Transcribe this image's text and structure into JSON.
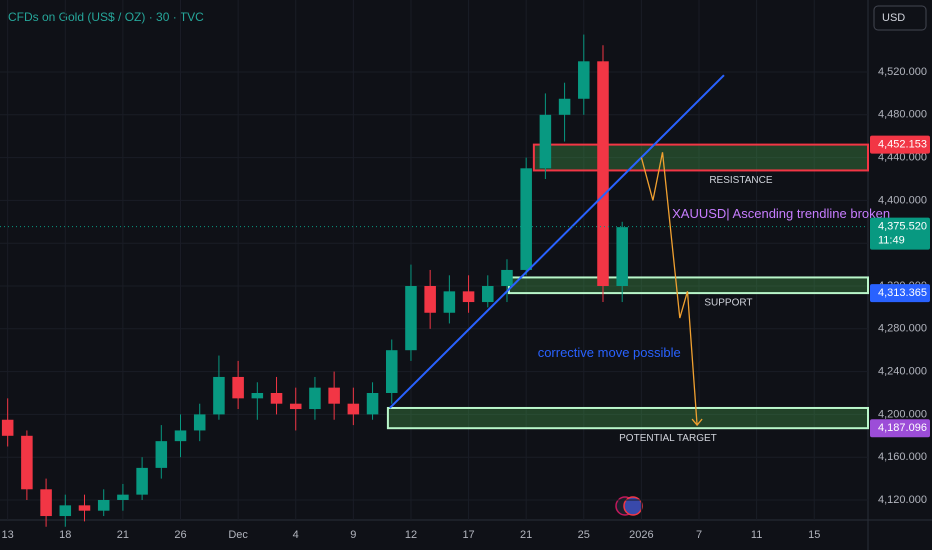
{
  "chart_data": {
    "type": "candlestick",
    "title": "CFDs on Gold (US$ / OZ) · 30 · TVC",
    "currency": "USD",
    "x": [
      0,
      1,
      2,
      3,
      4,
      5,
      6,
      7,
      8,
      9,
      10,
      11,
      12,
      13,
      14,
      15,
      16,
      17,
      18,
      19,
      20,
      21,
      22,
      23,
      24,
      25,
      26,
      27,
      28,
      29,
      30,
      31,
      32
    ],
    "open": [
      4195,
      4180,
      4130,
      4105,
      4115,
      4110,
      4120,
      4125,
      4150,
      4175,
      4185,
      4200,
      4235,
      4215,
      4220,
      4210,
      4205,
      4225,
      4210,
      4200,
      4220,
      4260,
      4320,
      4295,
      4315,
      4305,
      4320,
      4335,
      4430,
      4480,
      4495,
      4530,
      4320
    ],
    "high": [
      4215,
      4185,
      4140,
      4125,
      4125,
      4130,
      4135,
      4160,
      4190,
      4200,
      4210,
      4255,
      4250,
      4230,
      4235,
      4225,
      4235,
      4240,
      4225,
      4230,
      4270,
      4340,
      4335,
      4330,
      4330,
      4330,
      4345,
      4440,
      4500,
      4510,
      4555,
      4545,
      4380
    ],
    "low": [
      4170,
      4120,
      4095,
      4095,
      4100,
      4105,
      4110,
      4120,
      4140,
      4160,
      4175,
      4195,
      4205,
      4195,
      4200,
      4185,
      4195,
      4195,
      4190,
      4195,
      4210,
      4250,
      4280,
      4285,
      4295,
      4300,
      4305,
      4330,
      4420,
      4455,
      4480,
      4305,
      4305
    ],
    "close": [
      4180,
      4130,
      4105,
      4115,
      4110,
      4120,
      4125,
      4150,
      4175,
      4185,
      4200,
      4235,
      4215,
      4220,
      4210,
      4205,
      4225,
      4210,
      4200,
      4220,
      4260,
      4320,
      4295,
      4315,
      4305,
      4320,
      4335,
      4430,
      4480,
      4495,
      4530,
      4320,
      4375
    ],
    "up_color": "#089981",
    "down_color": "#f23645",
    "xlim": [
      -0.4,
      44.8
    ],
    "ylim": [
      4101.3,
      4587.3
    ],
    "xticks": [
      {
        "value": 0,
        "label": "13"
      },
      {
        "value": 3,
        "label": "18"
      },
      {
        "value": 6,
        "label": "21"
      },
      {
        "value": 9,
        "label": "26"
      },
      {
        "value": 12,
        "label": "Dec"
      },
      {
        "value": 15,
        "label": "4"
      },
      {
        "value": 18,
        "label": "9"
      },
      {
        "value": 21,
        "label": "12"
      },
      {
        "value": 24,
        "label": "17"
      },
      {
        "value": 27,
        "label": "21"
      },
      {
        "value": 30,
        "label": "25"
      },
      {
        "value": 33,
        "label": "2026"
      },
      {
        "value": 36,
        "label": "7"
      },
      {
        "value": 39,
        "label": "11"
      },
      {
        "value": 42,
        "label": "15"
      }
    ],
    "yticks": [
      {
        "value": 4120,
        "label": "4,120.000"
      },
      {
        "value": 4160,
        "label": "4,160.000"
      },
      {
        "value": 4200,
        "label": "4,200.000"
      },
      {
        "value": 4240,
        "label": "4,240.000"
      },
      {
        "value": 4280,
        "label": "4,280.000"
      },
      {
        "value": 4320,
        "label": "4,320.000"
      },
      {
        "value": 4360,
        "label": "4,360.000"
      },
      {
        "value": 4400,
        "label": "4,400.000"
      },
      {
        "value": 4440,
        "label": "4,440.000"
      },
      {
        "value": 4480,
        "label": "4,480.000"
      },
      {
        "value": 4520,
        "label": "4,520.000"
      }
    ],
    "price_tags": [
      {
        "value": 4452.153,
        "label": "4,452.153",
        "color": "#f23645"
      },
      {
        "value": 4375.52,
        "label": "4,375.520",
        "color": "#089981",
        "time": "11:49"
      },
      {
        "value": 4313.365,
        "label": "4,313.365",
        "color": "#2962ff"
      },
      {
        "value": 4187.096,
        "label": "4,187.096",
        "color": "#9c4dd8"
      }
    ],
    "zones": [
      {
        "label": "RESISTANCE",
        "bottom": 4428,
        "top": 4452.153,
        "start": 27.4,
        "color": "#f23645"
      },
      {
        "label": "SUPPORT",
        "bottom": 4313.365,
        "top": 4328,
        "start": 26.1,
        "color": "#b9f6ca"
      },
      {
        "label": "POTENTIAL TARGET",
        "bottom": 4187.096,
        "top": 4206,
        "start": 19.8,
        "color": "#b9f6ca"
      }
    ],
    "trendline": {
      "x": [
        19.9,
        37.3
      ],
      "values": [
        4206,
        4517
      ],
      "color": "#2962ff"
    },
    "projection": {
      "x": [
        33,
        33.6,
        34.1,
        35,
        35.4,
        35.9
      ],
      "values": [
        4440,
        4400,
        4445,
        4290,
        4315,
        4190
      ],
      "color": "#f0a030"
    },
    "annotations": [
      {
        "text": "XAUUSD| Ascending trendline broken",
        "x": 34.6,
        "value": 4387,
        "color": "#c77dff"
      },
      {
        "text": "corrective move possible",
        "x": 27.6,
        "value": 4257,
        "color": "#2962ff"
      }
    ]
  }
}
